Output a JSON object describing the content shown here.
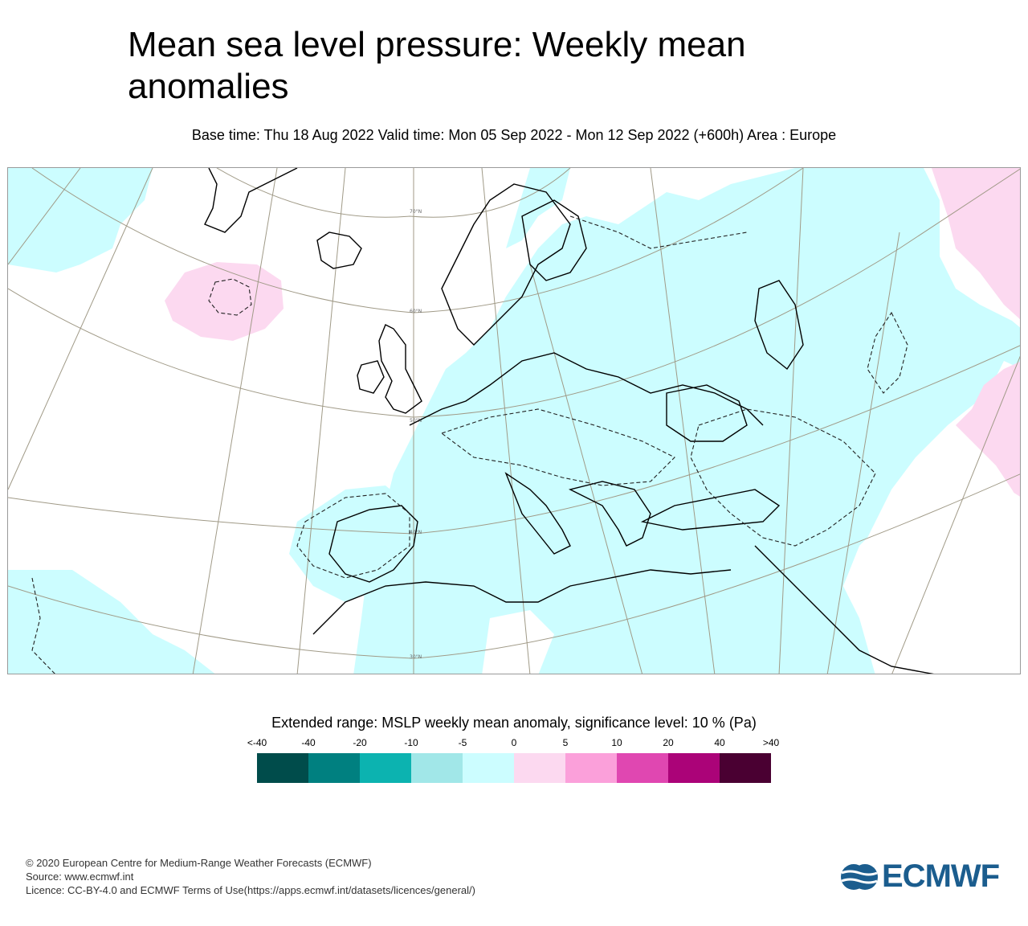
{
  "title": "Mean sea level pressure: Weekly mean anomalies",
  "subtitle": "Base time: Thu 18 Aug 2022 Valid time: Mon 05 Sep 2022 - Mon 12 Sep 2022 (+600h) Area : Europe",
  "map": {
    "lat_labels": [
      "70°N",
      "60°N",
      "50°N",
      "40°N",
      "30°N"
    ],
    "colors": {
      "negative_anomaly": "#ccfdff",
      "positive_anomaly": "#fcd9f0",
      "land_outline": "#000000",
      "grid": "#a09a87"
    }
  },
  "legend": {
    "title": "Extended range: MSLP weekly mean anomaly, significance level: 10 % (Pa)",
    "ticks": [
      "<-40",
      "-40",
      "-20",
      "-10",
      "-5",
      "0",
      "5",
      "10",
      "20",
      "40",
      ">40"
    ],
    "colors": [
      "#004c4b",
      "#008080",
      "#0cb3b0",
      "#a1e7e8",
      "#ccfdff",
      "#fcd9f0",
      "#fba0da",
      "#e047b1",
      "#ab0378",
      "#4a0032"
    ]
  },
  "credits": {
    "line1": "© 2020 European Centre for Medium-Range Weather Forecasts (ECMWF)",
    "line2": "Source: www.ecmwf.int",
    "line3": "Licence: CC-BY-4.0 and ECMWF Terms of Use(https://apps.ecmwf.int/datasets/licences/general/)"
  },
  "logo": {
    "text": "ECMWF",
    "color": "#1b5d8e"
  }
}
